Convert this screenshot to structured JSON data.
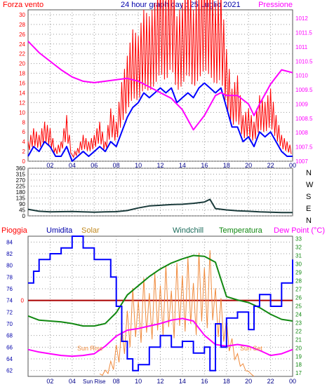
{
  "title": "24 hour graph day : 25 Luglio 2021",
  "colors": {
    "frame": "#555555",
    "grid": "#999999",
    "axis": "#000000",
    "wind_gust": "#ff0000",
    "wind_avg": "#0000ff",
    "pressure": "#ff00ff",
    "direction": "#1a3a3a",
    "rain": "#ff0000",
    "humidity": "#0000ff",
    "solar": "#f08a3c",
    "windchill": "#1a6b5a",
    "temperature": "#118811",
    "dewpoint": "#ff00ff",
    "rain_line": "#aa0000"
  },
  "chart_data": [
    {
      "type": "line",
      "title": "24 hour graph day : 25 Luglio 2021",
      "labels": {
        "left": "Forza vento",
        "right": "Pressione"
      },
      "x_ticks": [
        "02",
        "04",
        "06",
        "08",
        "10",
        "12",
        "14",
        "16",
        "18",
        "20",
        "22",
        "00"
      ],
      "y_ticks_left": [
        "0",
        "2",
        "4",
        "6",
        "8",
        "10",
        "12",
        "14",
        "16",
        "18",
        "20",
        "22",
        "24",
        "26",
        "28",
        "30"
      ],
      "y_ticks_right": [
        "1007",
        "1007.5",
        "1008",
        "1008.5",
        "1009",
        "1009.5",
        "1010",
        "1010.5",
        "1011",
        "1011.5",
        "1012"
      ],
      "xlim": [
        0,
        24
      ],
      "ylim_left": [
        0,
        31
      ],
      "ylim_right": [
        1007,
        1012.3
      ],
      "series": [
        {
          "name": "Forza vento",
          "axis": "left",
          "x": [
            0,
            0.5,
            1,
            1.5,
            2,
            2.5,
            3,
            3.5,
            4,
            4.5,
            5,
            5.5,
            6,
            6.5,
            7,
            7.5,
            8,
            8.5,
            9,
            9.5,
            10,
            10.5,
            11,
            11.5,
            12,
            12.5,
            13,
            13.5,
            14,
            14.5,
            15,
            15.5,
            16,
            16.5,
            17,
            17.5,
            18,
            18.5,
            19,
            19.5,
            20,
            20.5,
            21,
            21.5,
            22,
            22.5,
            23,
            23.5,
            24
          ],
          "values": [
            3,
            5,
            4,
            6,
            5,
            2,
            3,
            7,
            1,
            2,
            4,
            3,
            4,
            6,
            3,
            8,
            6,
            12,
            16,
            20,
            19,
            23,
            22,
            24,
            28,
            25,
            30,
            22,
            24,
            28,
            23,
            26,
            29,
            27,
            24,
            26,
            17,
            11,
            13,
            7,
            8,
            6,
            10,
            9,
            11,
            7,
            4,
            3,
            2
          ]
        },
        {
          "name": "Vento medio",
          "axis": "left",
          "x": [
            0,
            0.5,
            1,
            1.5,
            2,
            2.5,
            3,
            3.5,
            4,
            4.5,
            5,
            5.5,
            6,
            6.5,
            7,
            7.5,
            8,
            8.5,
            9,
            9.5,
            10,
            10.5,
            11,
            11.5,
            12,
            12.5,
            13,
            13.5,
            14,
            14.5,
            15,
            15.5,
            16,
            16.5,
            17,
            17.5,
            18,
            18.5,
            19,
            19.5,
            20,
            20.5,
            21,
            21.5,
            22,
            22.5,
            23,
            23.5,
            24
          ],
          "values": [
            1,
            3,
            2,
            4,
            3,
            1,
            1,
            3,
            0,
            1,
            2,
            1,
            2,
            3,
            2,
            4,
            3,
            6,
            9,
            11,
            12,
            14,
            13,
            14,
            15,
            14,
            15,
            12,
            13,
            14,
            13,
            15,
            16,
            15,
            14,
            15,
            11,
            7,
            7,
            4,
            5,
            3,
            6,
            5,
            6,
            4,
            2,
            1,
            1
          ]
        },
        {
          "name": "Pressione",
          "axis": "right",
          "x": [
            0,
            1,
            2,
            3,
            4,
            5,
            6,
            7,
            8,
            9,
            10,
            11,
            12,
            13,
            14,
            15,
            16,
            17,
            17.5,
            18,
            19,
            20,
            20.5,
            21,
            22,
            23,
            24
          ],
          "values": [
            1011.2,
            1010.8,
            1010.5,
            1010.2,
            1009.95,
            1009.8,
            1009.75,
            1009.8,
            1009.85,
            1009.9,
            1009.8,
            1009.6,
            1009.4,
            1009.2,
            1008.8,
            1008.1,
            1008.6,
            1009.3,
            1009.4,
            1009.3,
            1009.3,
            1009.0,
            1008.6,
            1009.0,
            1009.7,
            1010.2,
            1010.1
          ]
        }
      ]
    },
    {
      "type": "line",
      "labels": {
        "right_cardinals": [
          "N",
          "W",
          "S",
          "E",
          "N"
        ]
      },
      "y_ticks": [
        "0",
        "45",
        "90",
        "135",
        "180",
        "225",
        "270",
        "315",
        "360"
      ],
      "xlim": [
        0,
        24
      ],
      "ylim": [
        0,
        360
      ],
      "series": [
        {
          "name": "Direzione",
          "x": [
            0,
            1,
            2,
            3,
            4,
            5,
            6,
            7,
            8,
            9,
            10,
            11,
            12,
            13,
            14,
            15,
            16,
            16.5,
            17,
            18,
            19,
            20,
            21,
            22,
            23,
            24
          ],
          "values": [
            50,
            35,
            30,
            32,
            33,
            30,
            28,
            30,
            32,
            40,
            60,
            75,
            80,
            85,
            88,
            95,
            105,
            125,
            55,
            45,
            38,
            35,
            30,
            28,
            25,
            25
          ]
        }
      ]
    },
    {
      "type": "line",
      "labels": {
        "rain": "Pioggia",
        "humidity": "Umidita",
        "solar": "Solar",
        "windchill": "Windchill",
        "temperature": "Temperatura",
        "dewpoint": "Dew Point (°C)",
        "sunrise": "Sun Rise",
        "sunset": "Sun Set"
      },
      "x_ticks": [
        "02",
        "04",
        "Sun Rise",
        "08",
        "10",
        "12",
        "14",
        "16",
        "18",
        "20",
        "22",
        "00"
      ],
      "y_ticks_left": [
        "62",
        "64",
        "66",
        "68",
        "70",
        "72",
        "74",
        "76",
        "78",
        "80",
        "82",
        "84"
      ],
      "y_ticks_right": [
        "17",
        "18",
        "19",
        "20",
        "21",
        "22",
        "23",
        "24",
        "25",
        "26",
        "27",
        "28",
        "29",
        "30",
        "31",
        "32",
        "33"
      ],
      "rain_label": "0",
      "xlim": [
        0,
        24
      ],
      "ylim_left": [
        61,
        85
      ],
      "ylim_right": [
        16.6,
        33.3
      ],
      "series": [
        {
          "name": "Umidita",
          "axis": "left",
          "x": [
            0,
            0.5,
            1,
            2,
            3,
            4,
            5,
            6,
            7,
            7.5,
            8,
            8.5,
            9,
            9.5,
            10,
            11,
            12,
            13,
            14,
            15,
            16,
            16.5,
            17,
            17.5,
            18,
            19,
            20,
            20.5,
            21,
            22,
            23,
            24
          ],
          "values": [
            77,
            79,
            81,
            82,
            83,
            85,
            83,
            81,
            81,
            78,
            73,
            67,
            64,
            62,
            63,
            66,
            68,
            66,
            67,
            65,
            66,
            62,
            70,
            66,
            71,
            72,
            69,
            73,
            75,
            73,
            77,
            81
          ]
        },
        {
          "name": "Temperatura",
          "axis": "right",
          "x": [
            0,
            1,
            2,
            3,
            4,
            5,
            6,
            7,
            8,
            9,
            10,
            11,
            12,
            13,
            14,
            15,
            16,
            17,
            18,
            19,
            20,
            21,
            22,
            23,
            24
          ],
          "values": [
            23.8,
            23.3,
            23.2,
            23.1,
            22.9,
            22.6,
            22.6,
            22.9,
            24.2,
            26.3,
            27.4,
            28.5,
            29.4,
            30.1,
            30.6,
            31.0,
            30.9,
            30.2,
            26.1,
            25.7,
            25.4,
            24.8,
            24.0,
            23.4,
            23.2
          ]
        },
        {
          "name": "Dew Point",
          "axis": "right",
          "x": [
            0,
            1,
            2,
            3,
            4,
            5,
            6,
            7,
            8,
            9,
            10,
            11,
            12,
            13,
            14,
            15,
            16,
            17,
            18,
            19,
            20,
            21,
            22,
            23,
            24
          ],
          "values": [
            19.8,
            19.5,
            19.3,
            19.1,
            19.0,
            19.1,
            19.3,
            20.2,
            21.4,
            22.1,
            22.3,
            22.6,
            22.9,
            23.3,
            23.5,
            23.2,
            21.5,
            20.4,
            20.2,
            20.4,
            20.2,
            19.7,
            19.1,
            19.3,
            19.8
          ]
        },
        {
          "name": "Solar",
          "axis": "solar",
          "x": [
            6.5,
            7,
            7.5,
            8,
            8.5,
            9,
            9.5,
            10,
            10.5,
            11,
            11.5,
            12,
            12.5,
            13,
            13.5,
            14,
            14.5,
            15,
            15.5,
            16,
            16.5,
            17,
            17.5,
            18,
            18.5,
            19,
            19.5,
            20,
            20.5
          ],
          "values": [
            0.02,
            0.05,
            0.12,
            0.25,
            0.4,
            0.52,
            0.7,
            0.6,
            0.78,
            0.66,
            0.82,
            0.72,
            0.88,
            0.68,
            0.9,
            0.8,
            0.94,
            0.74,
            0.98,
            0.86,
            1.0,
            0.7,
            0.62,
            0.45,
            0.3,
            0.18,
            0.1,
            0.04,
            0.0
          ]
        }
      ]
    }
  ]
}
